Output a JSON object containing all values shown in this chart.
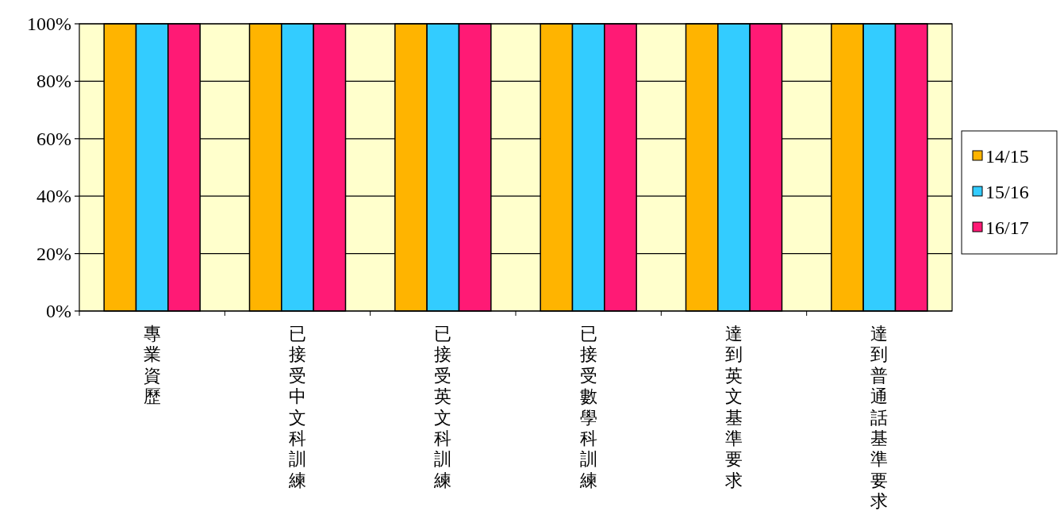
{
  "chart_data": {
    "type": "bar",
    "categories": [
      "專業資歷",
      "已接受中文科訓練",
      "已接受英文科訓練",
      "已接受數學科訓練",
      "達到英文基準要求",
      "達到普通話基準要求"
    ],
    "series": [
      {
        "name": "14/15",
        "color": "#ffb400",
        "values": [
          100,
          100,
          100,
          100,
          100,
          100
        ]
      },
      {
        "name": "15/16",
        "color": "#33ccff",
        "values": [
          100,
          100,
          100,
          100,
          100,
          100
        ]
      },
      {
        "name": "16/17",
        "color": "#ff1a75",
        "values": [
          100,
          100,
          100,
          100,
          100,
          100
        ]
      }
    ],
    "ylim": [
      0,
      100
    ],
    "yticks": [
      {
        "value": 0,
        "label": "0%"
      },
      {
        "value": 20,
        "label": "20%"
      },
      {
        "value": 40,
        "label": "40%"
      },
      {
        "value": 60,
        "label": "60%"
      },
      {
        "value": 80,
        "label": "80%"
      },
      {
        "value": 100,
        "label": "100%"
      }
    ],
    "grid": "y",
    "legend": "right"
  }
}
